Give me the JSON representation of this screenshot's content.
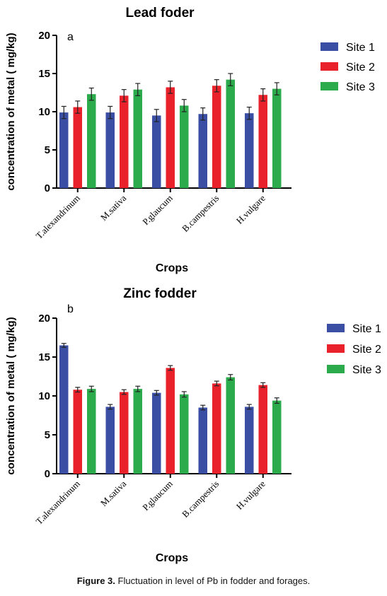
{
  "caption": {
    "label": "Figure 3.",
    "text": "Fluctuation in level of Pb in fodder and forages."
  },
  "colors": {
    "Site 1": "#3a4ea3",
    "Site 2": "#e8212a",
    "Site 3": "#2bab4b"
  },
  "chart_data": [
    {
      "type": "bar",
      "title": "Lead foder",
      "panel_label": "a",
      "xlabel": "Crops",
      "ylabel": "concentration of metal ( mg/kg)",
      "ylim": [
        0,
        20
      ],
      "yticks": [
        0,
        5,
        10,
        15,
        20
      ],
      "legend_position": "top-right",
      "categories": [
        "T.alexandrinum",
        "M.sativa",
        "P.glaucum",
        "B.campestris",
        "H.vulgare"
      ],
      "series": [
        {
          "name": "Site 1",
          "values": [
            9.9,
            9.9,
            9.5,
            9.7,
            9.8
          ],
          "errors": [
            0.8,
            0.8,
            0.8,
            0.8,
            0.8
          ]
        },
        {
          "name": "Site 2",
          "values": [
            10.6,
            12.1,
            13.2,
            13.4,
            12.2
          ],
          "errors": [
            0.8,
            0.8,
            0.8,
            0.8,
            0.8
          ]
        },
        {
          "name": "Site 3",
          "values": [
            12.3,
            12.9,
            10.8,
            14.2,
            13.0
          ],
          "errors": [
            0.8,
            0.8,
            0.8,
            0.8,
            0.8
          ]
        }
      ]
    },
    {
      "type": "bar",
      "title": "Zinc fodder",
      "panel_label": "b",
      "xlabel": "Crops",
      "ylabel": "concentration of metal ( mg/kg)",
      "ylim": [
        0,
        20
      ],
      "yticks": [
        0,
        5,
        10,
        15,
        20
      ],
      "legend_position": "top-right",
      "categories": [
        "T.alexandrinum",
        "M.sativa",
        "P.glaucum",
        "B.campestris",
        "H.vulgare"
      ],
      "series": [
        {
          "name": "Site 1",
          "values": [
            16.5,
            8.6,
            10.4,
            8.5,
            8.6
          ],
          "errors": [
            0.25,
            0.3,
            0.3,
            0.3,
            0.3
          ]
        },
        {
          "name": "Site 2",
          "values": [
            10.8,
            10.5,
            13.6,
            11.6,
            11.4
          ],
          "errors": [
            0.3,
            0.3,
            0.3,
            0.3,
            0.3
          ]
        },
        {
          "name": "Site 3",
          "values": [
            10.9,
            10.9,
            10.2,
            12.4,
            9.4
          ],
          "errors": [
            0.35,
            0.35,
            0.35,
            0.35,
            0.35
          ]
        }
      ]
    }
  ]
}
